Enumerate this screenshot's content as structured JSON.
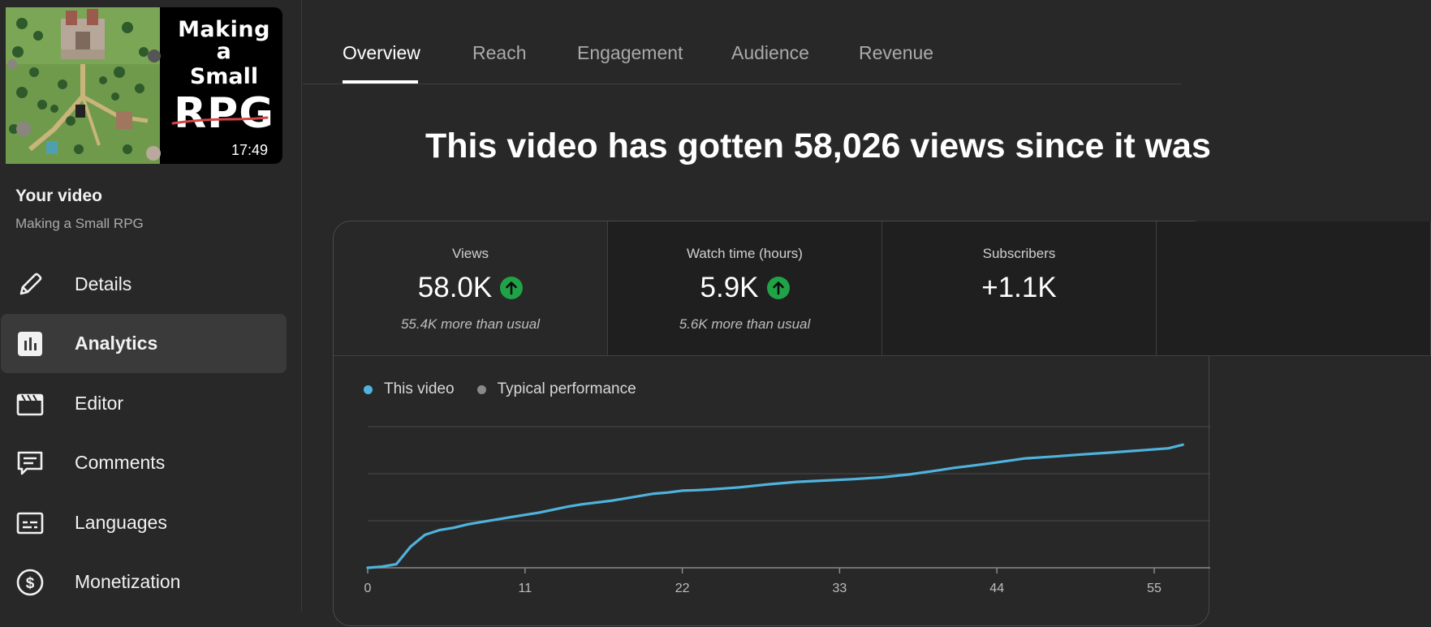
{
  "thumbnail": {
    "title_line1": "Making a",
    "title_line2": "Small",
    "title_line3": "RPG",
    "duration": "17:49"
  },
  "sidebar": {
    "heading": "Your video",
    "video_title": "Making a Small RPG",
    "items": [
      {
        "label": "Details",
        "icon": "pencil-icon",
        "active": false
      },
      {
        "label": "Analytics",
        "icon": "analytics-icon",
        "active": true
      },
      {
        "label": "Editor",
        "icon": "clapperboard-icon",
        "active": false
      },
      {
        "label": "Comments",
        "icon": "comment-icon",
        "active": false
      },
      {
        "label": "Languages",
        "icon": "subtitles-icon",
        "active": false
      },
      {
        "label": "Monetization",
        "icon": "dollar-icon",
        "active": false
      }
    ]
  },
  "tabs": [
    {
      "label": "Overview",
      "active": true
    },
    {
      "label": "Reach",
      "active": false
    },
    {
      "label": "Engagement",
      "active": false
    },
    {
      "label": "Audience",
      "active": false
    },
    {
      "label": "Revenue",
      "active": false
    }
  ],
  "headline": "This video has gotten 58,026 views since it was",
  "metrics": [
    {
      "label": "Views",
      "value": "58.0K",
      "trend": "up",
      "sub": "55.4K more than usual"
    },
    {
      "label": "Watch time (hours)",
      "value": "5.9K",
      "trend": "up",
      "sub": "5.6K more than usual"
    },
    {
      "label": "Subscribers",
      "value": "+1.1K",
      "trend": "",
      "sub": ""
    }
  ],
  "legend": [
    {
      "label": "This video",
      "color": "#4fb3dd"
    },
    {
      "label": "Typical performance",
      "color": "#8a8a8a"
    }
  ],
  "colors": {
    "accent_line": "#4fb3dd",
    "trend_up": "#1fa346",
    "background": "#282828"
  },
  "chart_data": {
    "type": "line",
    "x_tick_labels": [
      "0",
      "11",
      "22",
      "33",
      "44",
      "55"
    ],
    "xlim": [
      0,
      57
    ],
    "ylim": [
      0,
      60
    ],
    "grid": true,
    "legend_position": "top-left",
    "series": [
      {
        "name": "This video",
        "x": [
          0,
          1,
          2,
          3,
          4,
          5,
          6,
          7,
          8,
          10,
          12,
          14,
          15,
          17,
          19,
          20,
          21,
          22,
          23,
          24,
          26,
          28,
          30,
          32,
          34,
          36,
          38,
          40,
          41,
          42,
          43,
          44,
          46,
          48,
          50,
          52,
          54,
          56,
          57
        ],
        "y": [
          0,
          0.5,
          1.5,
          9,
          14,
          16,
          17,
          18.5,
          19.5,
          21.5,
          23.5,
          26,
          27,
          28.5,
          30.5,
          31.5,
          32,
          32.8,
          33,
          33.3,
          34.2,
          35.5,
          36.5,
          37.1,
          37.7,
          38.5,
          39.8,
          41.5,
          42.5,
          43.2,
          44,
          44.8,
          46.5,
          47.3,
          48.2,
          49,
          49.9,
          50.8,
          52.3
        ]
      }
    ]
  }
}
